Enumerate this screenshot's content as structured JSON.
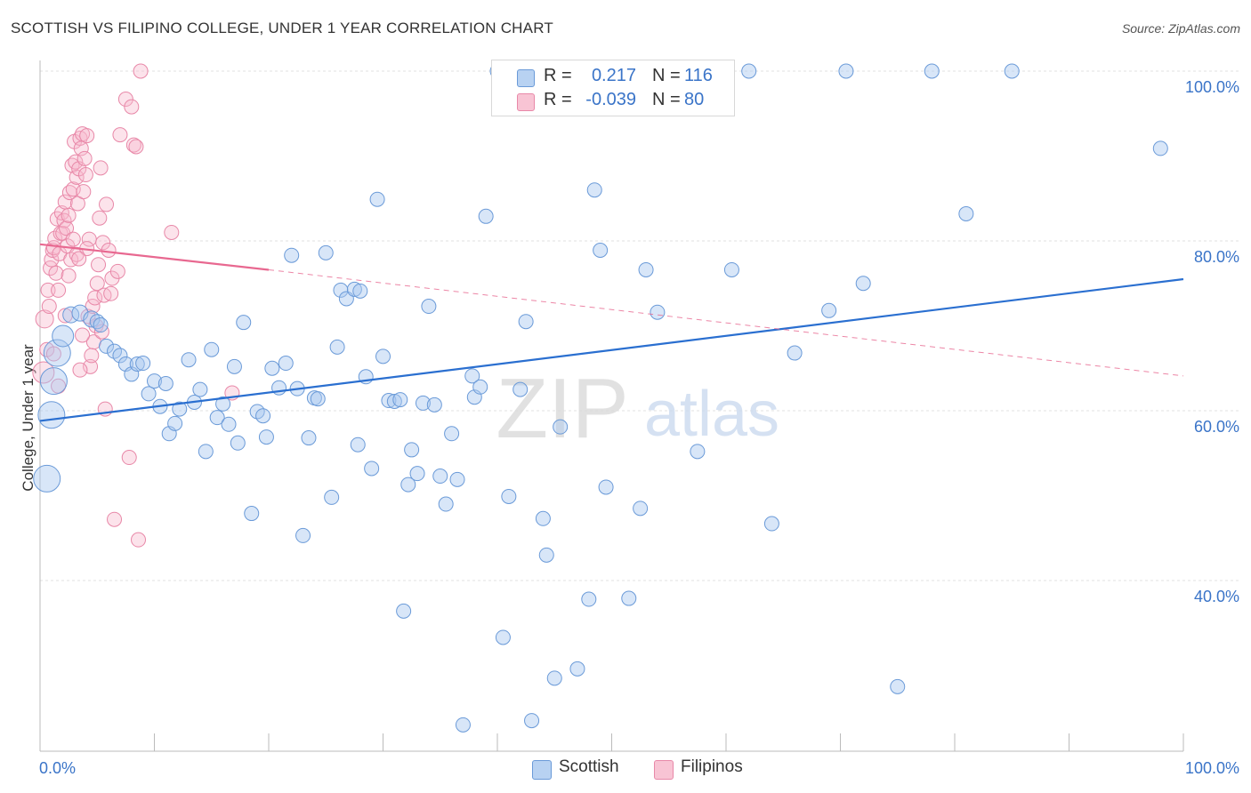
{
  "header": {
    "title": "SCOTTISH VS FILIPINO COLLEGE, UNDER 1 YEAR CORRELATION CHART",
    "source": "Source: ZipAtlas.com"
  },
  "watermark": {
    "zip": "ZIP",
    "atlas": "atlas"
  },
  "legend_top": {
    "rows": [
      {
        "r_label": "R =",
        "r_value": "0.217",
        "n_label": "N =",
        "n_value": "116"
      },
      {
        "r_label": "R =",
        "r_value": "-0.039",
        "n_label": "N =",
        "n_value": "80"
      }
    ]
  },
  "bottom_legend": {
    "scottish": "Scottish",
    "filipinos": "Filipinos"
  },
  "colors": {
    "scottish_fill": "#a8c8f0",
    "scottish_stroke": "#6a9ad8",
    "scottish_line": "#2a6fd0",
    "filipinos_fill": "#f8b8cc",
    "filipinos_stroke": "#e888a8",
    "filipinos_line": "#e86890",
    "axis_label": "#3a74c8",
    "grid": "#e2e2e2"
  },
  "chart_data": {
    "type": "scatter",
    "title": "SCOTTISH VS FILIPINO COLLEGE, UNDER 1 YEAR CORRELATION CHART",
    "xlabel": "",
    "ylabel": "College, Under 1 year",
    "xlim": [
      0,
      100
    ],
    "ylim": [
      20,
      100
    ],
    "x_tick_labels": [
      "0.0%",
      "100.0%"
    ],
    "y_tick_labels": [
      "40.0%",
      "60.0%",
      "80.0%",
      "100.0%"
    ],
    "y_ticks": [
      40,
      60,
      80,
      100
    ],
    "grid": true,
    "legend_position": "top-center",
    "series": [
      {
        "name": "Scottish",
        "r": 0.217,
        "n": 116,
        "trend": {
          "x": [
            0,
            100
          ],
          "y": [
            58.8,
            75.5
          ],
          "style": "solid"
        },
        "points": [
          [
            0.6,
            52,
            15
          ],
          [
            1,
            59.5,
            15
          ],
          [
            1.2,
            63.5,
            15
          ],
          [
            1.5,
            66.8,
            15
          ],
          [
            2,
            68.8,
            12
          ],
          [
            2.7,
            71.3,
            9
          ],
          [
            3.5,
            71.5,
            9
          ],
          [
            4.5,
            70.8,
            9
          ],
          [
            5,
            70.5,
            8
          ],
          [
            5.3,
            70.1,
            8
          ],
          [
            5.8,
            67.6,
            8
          ],
          [
            6.5,
            67,
            8
          ],
          [
            7,
            66.5,
            8
          ],
          [
            7.5,
            65.5,
            8
          ],
          [
            8,
            64.3,
            8
          ],
          [
            8.5,
            65.5,
            8
          ],
          [
            9,
            65.6,
            8
          ],
          [
            9.5,
            62,
            8
          ],
          [
            10,
            63.5,
            8
          ],
          [
            10.5,
            60.5,
            8
          ],
          [
            11,
            63.2,
            8
          ],
          [
            11.3,
            57.3,
            8
          ],
          [
            11.8,
            58.5,
            8
          ],
          [
            12.2,
            60.2,
            8
          ],
          [
            13,
            66,
            8
          ],
          [
            13.5,
            61,
            8
          ],
          [
            14,
            62.5,
            8
          ],
          [
            14.5,
            55.2,
            8
          ],
          [
            15,
            67.2,
            8
          ],
          [
            15.5,
            59.2,
            8
          ],
          [
            16,
            60.8,
            8
          ],
          [
            16.5,
            58.4,
            8
          ],
          [
            17,
            65.2,
            8
          ],
          [
            17.3,
            56.2,
            8
          ],
          [
            17.8,
            70.4,
            8
          ],
          [
            18.5,
            47.9,
            8
          ],
          [
            19,
            59.9,
            8
          ],
          [
            19.5,
            59.4,
            8
          ],
          [
            19.8,
            56.9,
            8
          ],
          [
            20.3,
            65,
            8
          ],
          [
            20.9,
            62.7,
            8
          ],
          [
            21.5,
            65.6,
            8
          ],
          [
            22,
            78.3,
            8
          ],
          [
            22.5,
            62.6,
            8
          ],
          [
            23,
            45.3,
            8
          ],
          [
            23.5,
            56.8,
            8
          ],
          [
            24,
            61.5,
            8
          ],
          [
            24.3,
            61.4,
            8
          ],
          [
            25,
            78.6,
            8
          ],
          [
            25.5,
            49.8,
            8
          ],
          [
            26,
            67.5,
            8
          ],
          [
            26.3,
            74.2,
            8
          ],
          [
            26.8,
            73.2,
            8
          ],
          [
            27.5,
            74.3,
            8
          ],
          [
            27.8,
            56,
            8
          ],
          [
            28,
            74.1,
            8
          ],
          [
            28.5,
            64,
            8
          ],
          [
            29,
            53.2,
            8
          ],
          [
            29.5,
            84.9,
            8
          ],
          [
            30,
            66.4,
            8
          ],
          [
            30.5,
            61.2,
            8
          ],
          [
            31,
            61.1,
            8
          ],
          [
            31.5,
            61.3,
            8
          ],
          [
            31.8,
            36.4,
            8
          ],
          [
            32.2,
            51.3,
            8
          ],
          [
            32.5,
            55.4,
            8
          ],
          [
            33,
            52.6,
            8
          ],
          [
            33.5,
            60.9,
            8
          ],
          [
            34,
            72.3,
            8
          ],
          [
            34.5,
            60.7,
            8
          ],
          [
            35,
            52.3,
            8
          ],
          [
            35.5,
            49,
            8
          ],
          [
            36,
            57.3,
            8
          ],
          [
            36.5,
            51.9,
            8
          ],
          [
            37,
            23,
            8
          ],
          [
            37.8,
            64.1,
            8
          ],
          [
            38,
            61.6,
            8
          ],
          [
            38.5,
            62.8,
            8
          ],
          [
            39,
            82.9,
            8
          ],
          [
            40,
            100,
            8
          ],
          [
            40.5,
            33.3,
            8
          ],
          [
            41,
            49.9,
            8
          ],
          [
            42,
            62.5,
            8
          ],
          [
            42.5,
            70.5,
            8
          ],
          [
            43,
            23.5,
            8
          ],
          [
            44,
            47.3,
            8
          ],
          [
            44.3,
            43,
            8
          ],
          [
            45,
            28.5,
            8
          ],
          [
            45.5,
            58.1,
            8
          ],
          [
            47,
            29.6,
            8
          ],
          [
            48,
            37.8,
            8
          ],
          [
            48.5,
            86,
            8
          ],
          [
            49,
            78.9,
            8
          ],
          [
            49.5,
            51,
            8
          ],
          [
            51.5,
            37.9,
            8
          ],
          [
            52.5,
            48.5,
            8
          ],
          [
            53,
            76.6,
            8
          ],
          [
            54,
            71.6,
            8
          ],
          [
            56,
            100,
            8
          ],
          [
            57.5,
            55.2,
            8
          ],
          [
            59,
            100,
            8
          ],
          [
            60.5,
            76.6,
            8
          ],
          [
            62,
            100,
            8
          ],
          [
            64,
            46.7,
            8
          ],
          [
            66,
            66.8,
            8
          ],
          [
            69,
            71.8,
            8
          ],
          [
            70.5,
            100,
            8
          ],
          [
            72,
            75,
            8
          ],
          [
            75,
            27.5,
            8
          ],
          [
            78,
            100,
            8
          ],
          [
            81,
            83.2,
            8
          ],
          [
            85,
            100,
            8
          ],
          [
            98,
            90.9,
            8
          ]
        ]
      },
      {
        "name": "Filipinos",
        "r": -0.039,
        "n": 80,
        "trend": {
          "x": [
            0,
            20
          ],
          "y": [
            79.6,
            76.6
          ],
          "style": "solid",
          "dashed_to": [
            100,
            64.1
          ]
        },
        "points": [
          [
            0.3,
            64.5,
            12
          ],
          [
            0.4,
            70.8,
            10
          ],
          [
            0.6,
            67.2,
            8
          ],
          [
            0.7,
            74.2,
            8
          ],
          [
            0.8,
            72.3,
            8
          ],
          [
            0.9,
            76.8,
            8
          ],
          [
            1,
            77.8,
            8
          ],
          [
            1.1,
            78.9,
            8
          ],
          [
            1.2,
            79.2,
            8
          ],
          [
            1.3,
            80.3,
            8
          ],
          [
            1.4,
            76.2,
            8
          ],
          [
            1.5,
            82.6,
            8
          ],
          [
            1.6,
            74.2,
            8
          ],
          [
            1.7,
            78.5,
            8
          ],
          [
            1.8,
            80.9,
            8
          ],
          [
            1.9,
            83.3,
            8
          ],
          [
            2,
            80.9,
            8
          ],
          [
            2.1,
            82.4,
            8
          ],
          [
            2.2,
            84.6,
            8
          ],
          [
            2.3,
            81.5,
            8
          ],
          [
            2.4,
            79.4,
            8
          ],
          [
            2.5,
            83,
            8
          ],
          [
            2.6,
            85.7,
            8
          ],
          [
            2.7,
            77.8,
            8
          ],
          [
            2.8,
            88.9,
            8
          ],
          [
            2.9,
            86.1,
            8
          ],
          [
            3,
            91.7,
            8
          ],
          [
            3.1,
            89.3,
            8
          ],
          [
            3.2,
            87.5,
            8
          ],
          [
            3.3,
            84.4,
            8
          ],
          [
            3.4,
            88.5,
            8
          ],
          [
            3.5,
            92.1,
            8
          ],
          [
            3.6,
            90.9,
            8
          ],
          [
            3.7,
            92.6,
            8
          ],
          [
            3.8,
            85.8,
            8
          ],
          [
            3.9,
            89.7,
            8
          ],
          [
            4,
            87.8,
            8
          ],
          [
            4.1,
            92.4,
            8
          ],
          [
            4.2,
            71.1,
            8
          ],
          [
            4.3,
            80.2,
            8
          ],
          [
            4.4,
            65.2,
            8
          ],
          [
            4.5,
            66.5,
            8
          ],
          [
            4.6,
            72.3,
            8
          ],
          [
            4.7,
            68.1,
            8
          ],
          [
            4.8,
            73.3,
            8
          ],
          [
            4.9,
            70,
            8
          ],
          [
            5,
            75,
            8
          ],
          [
            5.1,
            77.2,
            8
          ],
          [
            5.2,
            82.7,
            8
          ],
          [
            5.3,
            88.6,
            8
          ],
          [
            5.4,
            69.3,
            8
          ],
          [
            5.5,
            79.8,
            8
          ],
          [
            5.6,
            73.6,
            8
          ],
          [
            5.7,
            60.2,
            8
          ],
          [
            5.8,
            84.3,
            8
          ],
          [
            6,
            78.9,
            8
          ],
          [
            6.2,
            73.8,
            8
          ],
          [
            6.3,
            75.6,
            8
          ],
          [
            6.5,
            47.2,
            8
          ],
          [
            6.8,
            76.4,
            8
          ],
          [
            7,
            92.5,
            8
          ],
          [
            7.5,
            96.7,
            8
          ],
          [
            7.8,
            54.5,
            8
          ],
          [
            8,
            95.8,
            8
          ],
          [
            8.2,
            91.3,
            8
          ],
          [
            8.4,
            91.1,
            8
          ],
          [
            8.6,
            44.8,
            8
          ],
          [
            8.8,
            100,
            8
          ],
          [
            11.5,
            81,
            8
          ],
          [
            16.8,
            62.1,
            8
          ],
          [
            1.2,
            66.7,
            8
          ],
          [
            2.2,
            71.2,
            8
          ],
          [
            3.7,
            68.9,
            8
          ],
          [
            3.5,
            64.8,
            8
          ],
          [
            1.6,
            62.9,
            8
          ],
          [
            2.9,
            80.2,
            8
          ],
          [
            2.5,
            75.9,
            8
          ],
          [
            3.2,
            78.4,
            8
          ],
          [
            4.1,
            79.1,
            8
          ],
          [
            3.4,
            77.9,
            8
          ]
        ]
      }
    ]
  }
}
